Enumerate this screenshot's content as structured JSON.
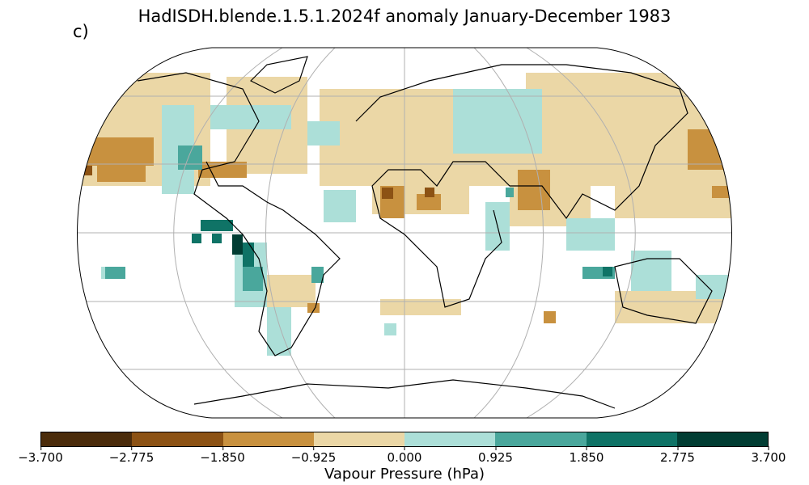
{
  "title": "HadISDH.blende.1.5.1.2024f anomaly January-December 1983",
  "panel_label": "c)",
  "projection": "Robinson",
  "colorbar": {
    "label": "Vapour Pressure (hPa)",
    "ticks": [
      "−3.700",
      "−2.775",
      "−1.850",
      "−0.925",
      "0.000",
      "0.925",
      "1.850",
      "2.775",
      "3.700"
    ],
    "colors": [
      "#4b2c0b",
      "#8c5214",
      "#c8913f",
      "#ebd7a6",
      "#acdfd8",
      "#4aa79c",
      "#0f7366",
      "#013d33"
    ]
  }
}
